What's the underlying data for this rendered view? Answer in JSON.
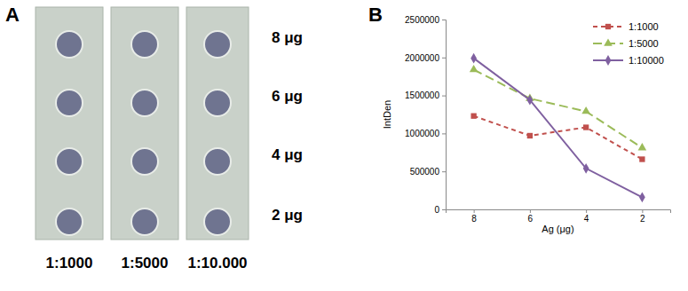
{
  "blot": {
    "label": "A",
    "dilutions": [
      "1:1000",
      "1:5000",
      "1:10.000"
    ],
    "amounts": [
      "8 μg",
      "6 μg",
      "4 μg",
      "2 μg"
    ]
  },
  "chart_data": {
    "type": "line",
    "label": "B",
    "categories": [
      8,
      6,
      4,
      2
    ],
    "x_label": "Ag (μg)",
    "y_label": "IntDen",
    "ylim": [
      0,
      2500000
    ],
    "yticks": [
      0,
      500000,
      1000000,
      1500000,
      2000000,
      2500000
    ],
    "grid": false,
    "legend": "top-right",
    "series": [
      {
        "name": "1:1000",
        "color": "#c0504d",
        "marker": "square",
        "line_style": "dash",
        "values": [
          1230000,
          970000,
          1080000,
          660000
        ]
      },
      {
        "name": "1:5000",
        "color": "#9bbb59",
        "marker": "triangle",
        "line_style": "longdash",
        "values": [
          1840000,
          1460000,
          1290000,
          810000
        ]
      },
      {
        "name": "1:10000",
        "color": "#7f60a0",
        "marker": "diamond",
        "line_style": "solid",
        "values": [
          1990000,
          1440000,
          540000,
          160000
        ]
      }
    ]
  }
}
